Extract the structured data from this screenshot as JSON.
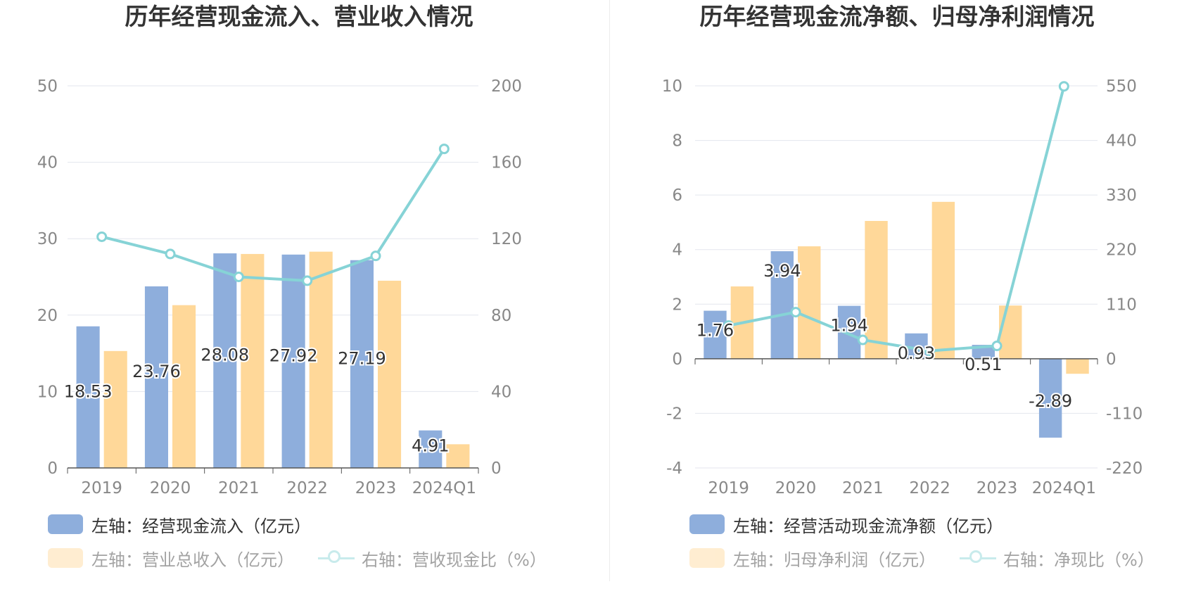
{
  "charts": [
    {
      "title": "历年经营现金流入、营业收入情况",
      "legend": [
        {
          "label": "左轴：经营现金流入（亿元）",
          "type": "bar",
          "color": "#8eaedc"
        },
        {
          "label": "左轴：营业总收入（亿元）",
          "type": "bar",
          "color": "#ffd899"
        },
        {
          "label": "右轴：营收现金比（%）",
          "type": "line",
          "color": "#86d3d6"
        }
      ]
    },
    {
      "title": "历年经营现金流净额、归母净利润情况",
      "legend": [
        {
          "label": "左轴：经营活动现金流净额（亿元）",
          "type": "bar",
          "color": "#8eaedc"
        },
        {
          "label": "左轴：归母净利润（亿元）",
          "type": "bar",
          "color": "#ffd899"
        },
        {
          "label": "右轴：净现比（%）",
          "type": "line",
          "color": "#86d3d6"
        }
      ]
    }
  ],
  "chart_data": [
    {
      "type": "bar",
      "title": "历年经营现金流入、营业收入情况",
      "categories": [
        "2019",
        "2020",
        "2021",
        "2022",
        "2023",
        "2024Q1"
      ],
      "series": [
        {
          "name": "左轴：经营现金流入（亿元）",
          "axis": "left",
          "type": "bar",
          "values": [
            18.53,
            23.76,
            28.08,
            27.92,
            27.19,
            4.91
          ],
          "labels": [
            "18.53",
            "23.76",
            "28.08",
            "27.92",
            "27.19",
            "4.91"
          ]
        },
        {
          "name": "左轴：营业总收入（亿元）",
          "axis": "left",
          "type": "bar",
          "values": [
            15.3,
            21.3,
            28.0,
            28.3,
            24.5,
            3.1
          ]
        },
        {
          "name": "右轴：营收现金比（%）",
          "axis": "right",
          "type": "line",
          "values": [
            121,
            112,
            100,
            98,
            111,
            167
          ]
        }
      ],
      "left_axis": {
        "min": 0,
        "max": 50,
        "ticks": [
          "0",
          "10",
          "20",
          "30",
          "40",
          "50"
        ]
      },
      "right_axis": {
        "min": 0,
        "max": 200,
        "ticks": [
          "0",
          "40",
          "80",
          "120",
          "160",
          "200"
        ]
      },
      "grid": true,
      "legend_position": "bottom"
    },
    {
      "type": "bar",
      "title": "历年经营现金流净额、归母净利润情况",
      "categories": [
        "2019",
        "2020",
        "2021",
        "2022",
        "2023",
        "2024Q1"
      ],
      "series": [
        {
          "name": "左轴：经营活动现金流净额（亿元）",
          "axis": "left",
          "type": "bar",
          "values": [
            1.76,
            3.94,
            1.94,
            0.93,
            0.51,
            -2.89
          ],
          "labels": [
            "1.76",
            "3.94",
            "1.94",
            "0.93",
            "0.51",
            "-2.89"
          ]
        },
        {
          "name": "左轴：归母净利润（亿元）",
          "axis": "left",
          "type": "bar",
          "values": [
            2.65,
            4.12,
            5.05,
            5.75,
            1.95,
            -0.55
          ]
        },
        {
          "name": "右轴：净现比（%）",
          "axis": "right",
          "type": "line",
          "values": [
            67,
            94,
            38,
            16,
            26,
            549
          ]
        }
      ],
      "left_axis": {
        "min": -4,
        "max": 10,
        "ticks": [
          "-4",
          "-2",
          "0",
          "2",
          "4",
          "6",
          "8",
          "10"
        ]
      },
      "right_axis": {
        "min": -220,
        "max": 550,
        "ticks": [
          "-220",
          "-110",
          "0",
          "110",
          "220",
          "330",
          "440",
          "550"
        ]
      },
      "grid": true,
      "legend_position": "bottom"
    }
  ]
}
